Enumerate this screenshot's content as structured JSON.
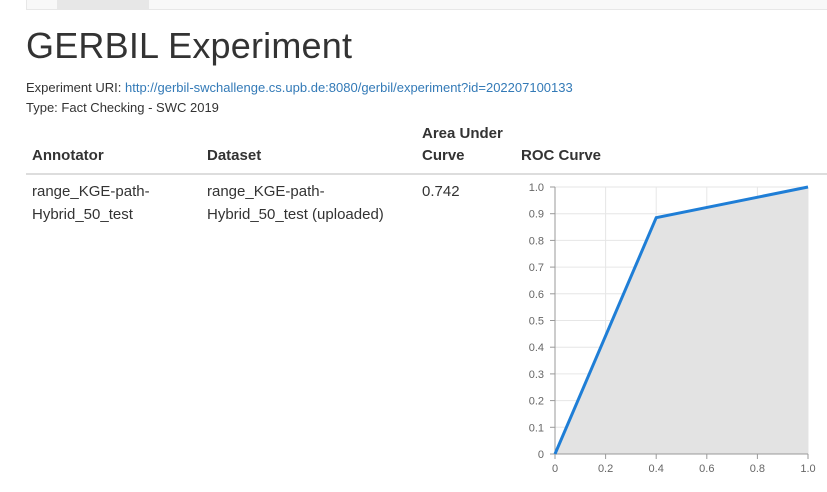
{
  "page": {
    "title": "GERBIL Experiment",
    "experiment_uri_label": "Experiment URI:",
    "experiment_uri": "http://gerbil-swchallenge.cs.upb.de:8080/gerbil/experiment?id=202207100133",
    "type_text": "Type: Fact Checking - SWC 2019"
  },
  "table": {
    "headers": {
      "annotator": "Annotator",
      "dataset": "Dataset",
      "auc_line1": "Area Under",
      "auc_line2": "Curve",
      "roc": "ROC Curve"
    },
    "rows": [
      {
        "annotator_line1": "range_KGE-path-",
        "annotator_line2": "Hybrid_50_test",
        "dataset_line1": "range_KGE-path-",
        "dataset_line2": "Hybrid_50_test (uploaded)",
        "auc": "0.742"
      }
    ]
  },
  "chart_data": {
    "type": "area",
    "x": [
      0,
      0.4,
      1.0
    ],
    "y": [
      0,
      0.885,
      1.0
    ],
    "xlim": [
      0,
      1
    ],
    "ylim": [
      0,
      1
    ],
    "xticks": [
      "0",
      "0.2",
      "0.4",
      "0.6",
      "0.8",
      "1.0"
    ],
    "yticks": [
      "0",
      "0.1",
      "0.2",
      "0.3",
      "0.4",
      "0.5",
      "0.6",
      "0.7",
      "0.8",
      "0.9",
      "1.0"
    ],
    "grid": true,
    "line_color": "#1f7ed6",
    "fill_color": "#e3e3e3"
  }
}
